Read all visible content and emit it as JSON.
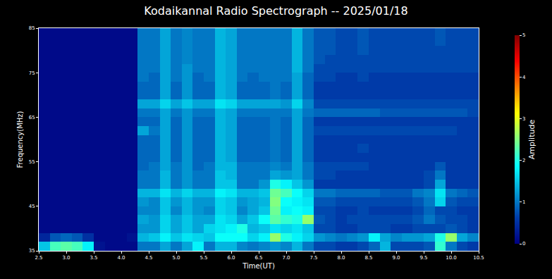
{
  "chart_data": {
    "type": "heatmap",
    "title": "Kodaikannal Radio Spectrograph -- 2025/01/18",
    "x_label": "Time(UT)",
    "y_label": "Frequency(MHz)",
    "color": "Jet",
    "xlim": [
      2.5,
      10.5
    ],
    "xticks": [
      2.5,
      {
        "value": 3,
        "label": "3.0"
      },
      3.5,
      {
        "value": 4,
        "label": "4.0"
      },
      4.5,
      {
        "value": 5,
        "label": "5.0"
      },
      5.5,
      {
        "value": 6,
        "label": "6.0"
      },
      6.5,
      {
        "value": 7,
        "label": "7.0"
      },
      7.5,
      {
        "value": 8,
        "label": "8.0"
      },
      8.5,
      {
        "value": 9,
        "label": "9.0"
      },
      9.5,
      {
        "value": 10,
        "label": "10.0"
      },
      10.5
    ],
    "ylim": [
      35,
      85
    ],
    "yticks": [
      35,
      45,
      55,
      65,
      75,
      85
    ],
    "colorbar": {
      "label": "Amplitude",
      "range": [
        0,
        5
      ],
      "ticks": [
        0,
        1,
        2,
        3,
        4,
        5
      ]
    },
    "x": [
      2.6,
      2.8,
      3.0,
      3.2,
      3.4,
      3.6,
      3.8,
      4.0,
      4.2,
      4.4,
      4.6,
      4.8,
      5.0,
      5.2,
      5.4,
      5.6,
      5.8,
      6.0,
      6.2,
      6.4,
      6.6,
      6.8,
      7.0,
      7.2,
      7.4,
      7.6,
      7.8,
      8.0,
      8.2,
      8.4,
      8.6,
      8.8,
      9.0,
      9.2,
      9.4,
      9.6,
      9.8,
      10.0,
      10.2,
      10.4
    ],
    "y": [
      36,
      38,
      40,
      42,
      44,
      46,
      48,
      50,
      52,
      54,
      56,
      58,
      60,
      62,
      64,
      66,
      68,
      70,
      72,
      74,
      76,
      78,
      80,
      82,
      84
    ],
    "cells": [
      [
        1.5,
        2.2,
        2.3,
        2.2,
        1.8,
        0.2,
        0.1,
        0.1,
        0.1,
        1.0,
        1.0,
        1.3,
        1.0,
        1.3,
        1.8,
        1.0,
        1.4,
        1.4,
        1.1,
        1.0,
        1.1,
        1.2,
        1.1,
        1.4,
        1.0,
        0.7,
        0.7,
        0.6,
        0.6,
        0.7,
        0.9,
        1.4,
        0.7,
        0.7,
        0.7,
        0.8,
        2.1,
        1.0,
        0.7,
        0.6
      ],
      [
        0.4,
        0.8,
        0.9,
        0.8,
        0.5,
        0.1,
        0.1,
        0.1,
        0.2,
        1.4,
        1.5,
        1.8,
        1.5,
        1.7,
        1.6,
        1.5,
        1.9,
        1.9,
        1.9,
        1.6,
        1.8,
        2.6,
        2.0,
        1.8,
        1.6,
        1.2,
        1.1,
        1.0,
        1.1,
        1.2,
        1.8,
        1.3,
        1.1,
        1.2,
        1.2,
        1.3,
        2.0,
        2.6,
        1.3,
        1.1
      ],
      [
        0.1,
        0.1,
        0.1,
        0.1,
        0.1,
        0.1,
        0.1,
        0.1,
        0.1,
        1.2,
        1.2,
        1.6,
        1.3,
        1.5,
        1.3,
        1.6,
        1.7,
        1.8,
        2.0,
        1.4,
        1.5,
        1.7,
        1.6,
        1.7,
        1.5,
        0.7,
        0.7,
        0.6,
        0.6,
        0.7,
        0.7,
        0.7,
        0.6,
        0.6,
        0.7,
        0.7,
        0.7,
        0.8,
        0.7,
        0.6
      ],
      [
        0.1,
        0.1,
        0.1,
        0.1,
        0.1,
        0.1,
        0.1,
        0.1,
        0.1,
        1.3,
        1.2,
        1.6,
        1.3,
        1.5,
        1.3,
        1.3,
        1.7,
        1.6,
        1.3,
        1.5,
        1.9,
        2.3,
        2.1,
        2.0,
        2.6,
        0.8,
        0.7,
        0.6,
        0.7,
        0.7,
        0.7,
        0.7,
        0.7,
        0.7,
        0.8,
        1.0,
        0.8,
        0.7,
        0.7,
        0.6
      ],
      [
        0.1,
        0.1,
        0.1,
        0.1,
        0.1,
        0.1,
        0.1,
        0.1,
        0.1,
        1.1,
        1.1,
        1.5,
        1.1,
        1.4,
        1.2,
        1.1,
        1.6,
        1.5,
        1.1,
        1.3,
        1.5,
        2.4,
        1.8,
        1.9,
        1.8,
        0.7,
        0.7,
        0.6,
        0.6,
        0.7,
        0.6,
        0.6,
        0.6,
        0.6,
        0.7,
        0.9,
        0.7,
        0.7,
        0.6,
        0.6
      ],
      [
        0.1,
        0.1,
        0.1,
        0.1,
        0.1,
        0.1,
        0.1,
        0.1,
        0.1,
        1.2,
        1.1,
        1.5,
        1.2,
        1.4,
        1.2,
        1.2,
        1.6,
        1.5,
        1.2,
        1.3,
        1.4,
        2.5,
        1.9,
        1.8,
        1.7,
        0.8,
        0.8,
        0.7,
        0.7,
        0.7,
        0.7,
        0.7,
        0.7,
        0.7,
        0.8,
        1.0,
        1.6,
        0.8,
        0.7,
        0.7
      ],
      [
        0.1,
        0.1,
        0.1,
        0.1,
        0.1,
        0.1,
        0.1,
        0.1,
        0.1,
        1.4,
        1.4,
        1.7,
        1.4,
        1.6,
        1.4,
        1.4,
        1.8,
        1.7,
        1.4,
        1.4,
        1.5,
        2.4,
        2.2,
        1.9,
        1.6,
        1.0,
        1.0,
        0.9,
        0.9,
        0.9,
        0.9,
        0.8,
        0.8,
        0.8,
        1.0,
        1.1,
        1.7,
        1.0,
        0.9,
        0.8
      ],
      [
        0.1,
        0.1,
        0.1,
        0.1,
        0.1,
        0.1,
        0.1,
        0.1,
        0.1,
        1.0,
        1.0,
        1.4,
        1.0,
        1.2,
        1.0,
        1.0,
        1.5,
        1.5,
        1.0,
        1.0,
        1.2,
        2.0,
        1.8,
        1.5,
        1.2,
        0.6,
        0.6,
        0.6,
        0.6,
        0.6,
        0.6,
        0.6,
        0.6,
        0.6,
        0.6,
        0.7,
        1.3,
        0.6,
        0.6,
        0.6
      ],
      [
        0.1,
        0.1,
        0.1,
        0.1,
        0.1,
        0.1,
        0.1,
        0.1,
        0.1,
        1.0,
        1.0,
        1.4,
        1.0,
        1.2,
        1.0,
        1.0,
        1.5,
        1.4,
        1.0,
        1.0,
        1.0,
        1.3,
        1.2,
        1.3,
        1.0,
        0.7,
        0.7,
        0.6,
        0.6,
        0.6,
        0.6,
        0.6,
        0.6,
        0.6,
        0.6,
        0.7,
        1.0,
        0.6,
        0.6,
        0.6
      ],
      [
        0.1,
        0.1,
        0.1,
        0.1,
        0.1,
        0.1,
        0.1,
        0.1,
        0.1,
        0.9,
        1.0,
        1.3,
        1.0,
        1.2,
        0.9,
        1.0,
        1.4,
        1.4,
        1.0,
        1.0,
        1.0,
        1.1,
        1.0,
        1.3,
        1.0,
        0.7,
        0.7,
        0.7,
        0.7,
        0.7,
        0.6,
        0.6,
        0.6,
        0.6,
        0.6,
        0.6,
        0.8,
        0.6,
        0.6,
        0.6
      ],
      [
        0.1,
        0.1,
        0.1,
        0.1,
        0.1,
        0.1,
        0.1,
        0.1,
        0.1,
        0.9,
        0.9,
        1.3,
        0.9,
        1.2,
        0.9,
        0.9,
        1.4,
        1.3,
        0.9,
        0.9,
        0.9,
        1.0,
        0.9,
        1.3,
        0.9,
        0.6,
        0.6,
        0.6,
        0.6,
        0.6,
        0.6,
        0.6,
        0.6,
        0.6,
        0.6,
        0.6,
        0.6,
        0.6,
        0.6,
        0.6
      ],
      [
        0.1,
        0.1,
        0.1,
        0.1,
        0.1,
        0.1,
        0.1,
        0.1,
        0.1,
        0.9,
        0.9,
        1.3,
        0.9,
        1.2,
        0.9,
        0.9,
        1.4,
        1.3,
        0.9,
        0.9,
        0.9,
        1.0,
        0.9,
        1.3,
        0.9,
        0.6,
        0.6,
        0.6,
        0.6,
        0.7,
        0.6,
        0.6,
        0.6,
        0.6,
        0.6,
        0.6,
        0.6,
        0.6,
        0.6,
        0.6
      ],
      [
        0.1,
        0.1,
        0.1,
        0.1,
        0.1,
        0.1,
        0.1,
        0.1,
        0.1,
        0.9,
        0.9,
        1.3,
        0.9,
        1.2,
        0.9,
        0.9,
        1.4,
        1.3,
        0.9,
        0.9,
        0.9,
        1.0,
        0.9,
        1.3,
        0.9,
        0.6,
        0.6,
        0.6,
        0.6,
        0.6,
        0.6,
        0.6,
        0.6,
        0.6,
        0.6,
        0.6,
        0.6,
        0.6,
        0.6,
        0.6
      ],
      [
        0.1,
        0.1,
        0.1,
        0.1,
        0.1,
        0.1,
        0.1,
        0.1,
        0.1,
        1.3,
        1.0,
        1.3,
        0.9,
        1.2,
        0.9,
        0.9,
        1.4,
        1.3,
        0.9,
        0.9,
        0.9,
        1.0,
        0.9,
        1.3,
        0.9,
        0.7,
        0.7,
        0.7,
        0.7,
        0.7,
        0.7,
        0.7,
        0.7,
        0.7,
        0.7,
        0.7,
        0.7,
        0.7,
        0.6,
        0.6
      ],
      [
        0.1,
        0.1,
        0.1,
        0.1,
        0.1,
        0.1,
        0.1,
        0.1,
        0.1,
        0.9,
        0.9,
        1.3,
        0.9,
        1.2,
        0.9,
        0.9,
        1.4,
        1.3,
        0.9,
        0.9,
        0.9,
        1.0,
        0.9,
        1.3,
        0.9,
        0.6,
        0.6,
        0.6,
        0.6,
        0.6,
        0.6,
        0.6,
        0.6,
        0.6,
        0.6,
        0.6,
        0.6,
        0.6,
        0.6,
        0.6
      ],
      [
        0.1,
        0.1,
        0.1,
        0.1,
        0.1,
        0.1,
        0.1,
        0.1,
        0.1,
        1.0,
        1.0,
        1.3,
        1.0,
        1.2,
        1.0,
        1.0,
        1.4,
        1.3,
        1.0,
        1.0,
        1.0,
        1.0,
        1.0,
        1.3,
        1.0,
        0.9,
        0.9,
        0.9,
        0.9,
        0.9,
        0.9,
        0.8,
        0.8,
        0.8,
        0.8,
        0.8,
        0.8,
        0.8,
        0.8,
        0.7
      ],
      [
        0.1,
        0.1,
        0.1,
        0.1,
        0.1,
        0.1,
        0.1,
        0.1,
        0.1,
        1.3,
        1.3,
        1.6,
        1.3,
        1.5,
        1.3,
        1.3,
        1.7,
        1.6,
        1.3,
        1.3,
        1.3,
        1.3,
        1.2,
        1.6,
        1.1,
        0.7,
        0.7,
        0.7,
        0.7,
        0.7,
        0.7,
        0.7,
        0.7,
        0.7,
        0.7,
        0.7,
        0.7,
        0.7,
        0.7,
        0.7
      ],
      [
        0.1,
        0.1,
        0.1,
        0.1,
        0.1,
        0.1,
        0.1,
        0.1,
        0.1,
        0.9,
        0.9,
        1.3,
        0.9,
        1.2,
        0.9,
        0.9,
        1.4,
        1.3,
        0.9,
        0.9,
        0.9,
        1.0,
        0.9,
        1.3,
        0.9,
        0.6,
        0.6,
        0.6,
        0.6,
        0.6,
        0.6,
        0.6,
        0.6,
        0.6,
        0.6,
        0.6,
        0.6,
        0.6,
        0.6,
        0.6
      ],
      [
        0.1,
        0.1,
        0.1,
        0.1,
        0.1,
        0.1,
        0.1,
        0.1,
        0.1,
        0.9,
        0.9,
        1.3,
        0.9,
        1.2,
        0.9,
        0.9,
        1.4,
        1.3,
        0.9,
        0.9,
        0.9,
        1.0,
        0.9,
        1.3,
        0.9,
        0.6,
        0.6,
        0.6,
        0.6,
        0.6,
        0.6,
        0.6,
        0.6,
        0.6,
        0.6,
        0.6,
        0.6,
        0.6,
        0.6,
        0.6
      ],
      [
        0.1,
        0.1,
        0.1,
        0.1,
        0.1,
        0.1,
        0.1,
        0.1,
        0.1,
        1.0,
        0.9,
        1.3,
        1.0,
        1.2,
        0.9,
        1.0,
        1.4,
        1.3,
        1.0,
        0.9,
        1.0,
        1.0,
        1.0,
        1.3,
        0.9,
        0.7,
        0.7,
        0.6,
        0.6,
        0.7,
        0.6,
        0.6,
        0.6,
        0.6,
        0.6,
        0.6,
        0.6,
        0.6,
        0.6,
        0.6
      ],
      [
        0.1,
        0.1,
        0.1,
        0.1,
        0.1,
        0.1,
        0.1,
        0.1,
        0.1,
        1.0,
        1.0,
        1.3,
        1.0,
        1.2,
        1.0,
        1.0,
        1.4,
        1.3,
        1.0,
        1.0,
        1.0,
        1.0,
        1.0,
        1.4,
        1.0,
        0.7,
        0.7,
        0.7,
        0.7,
        0.7,
        0.7,
        0.7,
        0.7,
        0.7,
        0.7,
        0.7,
        0.7,
        0.7,
        0.7,
        0.7
      ],
      [
        0.1,
        0.1,
        0.1,
        0.1,
        0.1,
        0.1,
        0.1,
        0.1,
        0.1,
        1.0,
        1.0,
        1.3,
        1.0,
        1.1,
        1.0,
        1.0,
        1.4,
        1.3,
        1.0,
        1.0,
        1.0,
        1.0,
        1.0,
        1.4,
        1.0,
        0.8,
        0.7,
        0.7,
        0.7,
        0.7,
        0.7,
        0.7,
        0.7,
        0.7,
        0.7,
        0.7,
        0.7,
        0.7,
        0.7,
        0.7
      ],
      [
        0.1,
        0.1,
        0.1,
        0.1,
        0.1,
        0.1,
        0.1,
        0.1,
        0.1,
        1.0,
        1.0,
        1.3,
        1.0,
        1.1,
        1.0,
        1.0,
        1.4,
        1.3,
        1.0,
        1.0,
        1.0,
        1.0,
        1.0,
        1.4,
        1.0,
        0.8,
        0.8,
        0.7,
        0.7,
        0.8,
        0.7,
        0.7,
        0.7,
        0.7,
        0.7,
        0.7,
        0.7,
        0.7,
        0.7,
        0.7
      ],
      [
        0.1,
        0.1,
        0.1,
        0.1,
        0.1,
        0.1,
        0.1,
        0.1,
        0.1,
        1.0,
        1.0,
        1.3,
        1.0,
        1.1,
        1.0,
        1.0,
        1.4,
        1.3,
        1.0,
        1.0,
        1.0,
        1.0,
        1.0,
        1.4,
        1.0,
        0.8,
        0.8,
        0.7,
        0.7,
        0.8,
        0.7,
        0.7,
        0.7,
        0.7,
        0.7,
        0.7,
        0.8,
        0.7,
        0.7,
        0.7
      ],
      [
        0.1,
        0.1,
        0.1,
        0.1,
        0.1,
        0.1,
        0.1,
        0.1,
        0.1,
        1.0,
        1.0,
        1.3,
        1.0,
        1.1,
        1.0,
        1.0,
        1.4,
        1.3,
        1.0,
        1.0,
        1.0,
        1.0,
        1.0,
        1.4,
        1.0,
        0.8,
        0.8,
        0.7,
        0.7,
        0.8,
        0.7,
        0.7,
        0.7,
        0.7,
        0.7,
        0.7,
        0.8,
        0.7,
        0.7,
        0.7
      ]
    ]
  }
}
